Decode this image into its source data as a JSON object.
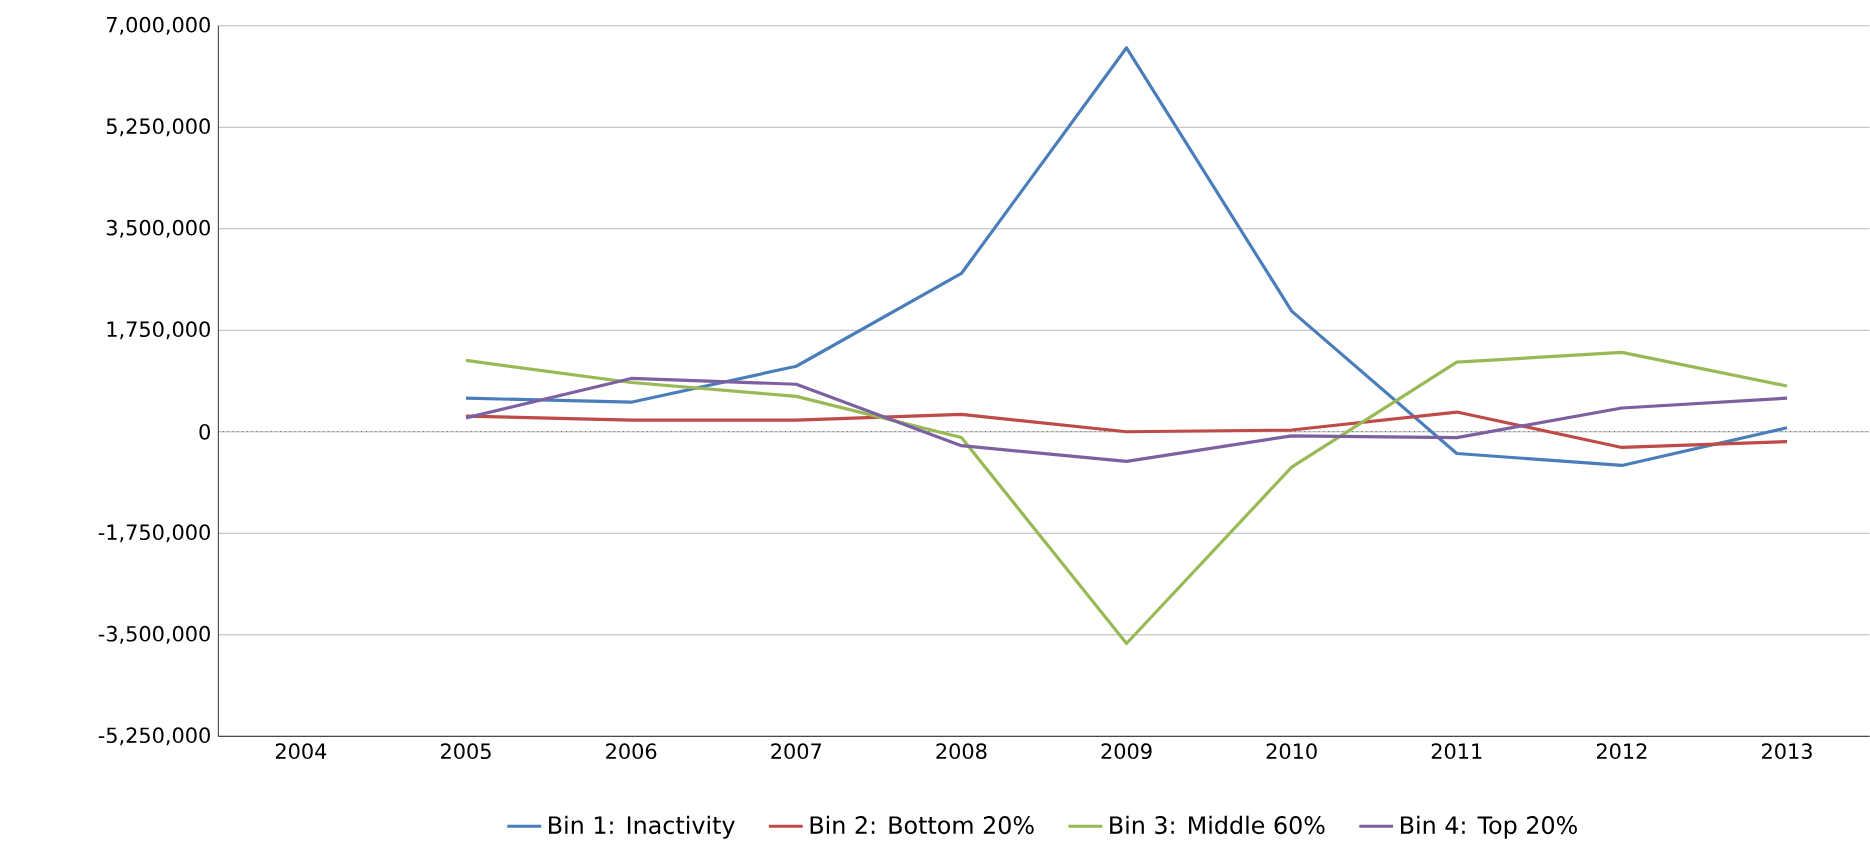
{
  "chart_data": {
    "type": "line",
    "categories": [
      "2004",
      "2005",
      "2006",
      "2007",
      "2008",
      "2009",
      "2010",
      "2011",
      "2012",
      "2013"
    ],
    "series": [
      {
        "name": "Bin 1: Inactivity",
        "color": "#4a7ebb",
        "values": [
          null,
          580000,
          510000,
          1130000,
          2730000,
          6620000,
          2080000,
          -375000,
          -580000,
          70000
        ]
      },
      {
        "name": "Bin 2: Bottom 20%",
        "color": "#be4b48",
        "values": [
          null,
          270000,
          200000,
          200000,
          300000,
          0,
          30000,
          340000,
          -270000,
          -170000
        ]
      },
      {
        "name": "Bin 3: Middle 60%",
        "color": "#98b954",
        "values": [
          null,
          1230000,
          850000,
          610000,
          -100000,
          -3650000,
          -610000,
          1200000,
          1370000,
          790000
        ]
      },
      {
        "name": "Bin 4: Top 20%",
        "color": "#7d60a0",
        "values": [
          null,
          240000,
          920000,
          820000,
          -240000,
          -510000,
          -70000,
          -100000,
          410000,
          580000
        ]
      }
    ],
    "ylim": [
      -5250000,
      7000000
    ],
    "yticks": [
      {
        "value": -5250000,
        "label": "-5,250,000"
      },
      {
        "value": -3500000,
        "label": "-3,500,000"
      },
      {
        "value": -1750000,
        "label": "-1,750,000"
      },
      {
        "value": 0,
        "label": "0"
      },
      {
        "value": 1750000,
        "label": "1,750,000"
      },
      {
        "value": 3500000,
        "label": "3,500,000"
      },
      {
        "value": 5250000,
        "label": "5,250,000"
      },
      {
        "value": 7000000,
        "label": "7,000,000"
      }
    ],
    "ref_lines": [
      {
        "axis": "y",
        "value": 0,
        "color": "#000000",
        "line_style": "dotted"
      }
    ],
    "grid": "y",
    "legend": "bottom",
    "marker": "none",
    "line_style": "solid"
  }
}
